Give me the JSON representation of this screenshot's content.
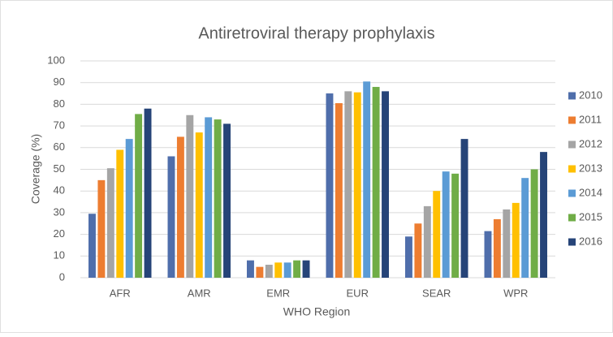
{
  "chart_data": {
    "type": "bar",
    "title": "Antiretroviral therapy prophylaxis",
    "x_label": "WHO Region",
    "y_label": "Coverage (%)",
    "categories": [
      "AFR",
      "AMR",
      "EMR",
      "EUR",
      "SEAR",
      "WPR"
    ],
    "series": [
      {
        "name": "2010",
        "color": "#4f6eab",
        "values": [
          29.5,
          56,
          8,
          85,
          19,
          21.5
        ]
      },
      {
        "name": "2011",
        "color": "#ed7d31",
        "values": [
          45,
          65,
          5,
          80.5,
          25,
          27
        ]
      },
      {
        "name": "2012",
        "color": "#a5a5a5",
        "values": [
          50.5,
          75,
          6,
          86,
          33,
          31.5
        ]
      },
      {
        "name": "2013",
        "color": "#ffc000",
        "values": [
          59,
          67,
          7,
          85.5,
          40,
          34.5
        ]
      },
      {
        "name": "2014",
        "color": "#5b9bd5",
        "values": [
          64,
          74,
          7,
          90.5,
          49,
          46
        ]
      },
      {
        "name": "2015",
        "color": "#70ad47",
        "values": [
          75.5,
          73,
          8,
          88,
          48,
          50
        ]
      },
      {
        "name": "2016",
        "color": "#264478",
        "values": [
          78,
          71,
          8,
          86,
          64,
          58
        ]
      }
    ],
    "ylim": [
      0,
      100
    ],
    "yticks": [
      0,
      10,
      20,
      30,
      40,
      50,
      60,
      70,
      80,
      90,
      100
    ],
    "grid": true,
    "legend": "right"
  }
}
